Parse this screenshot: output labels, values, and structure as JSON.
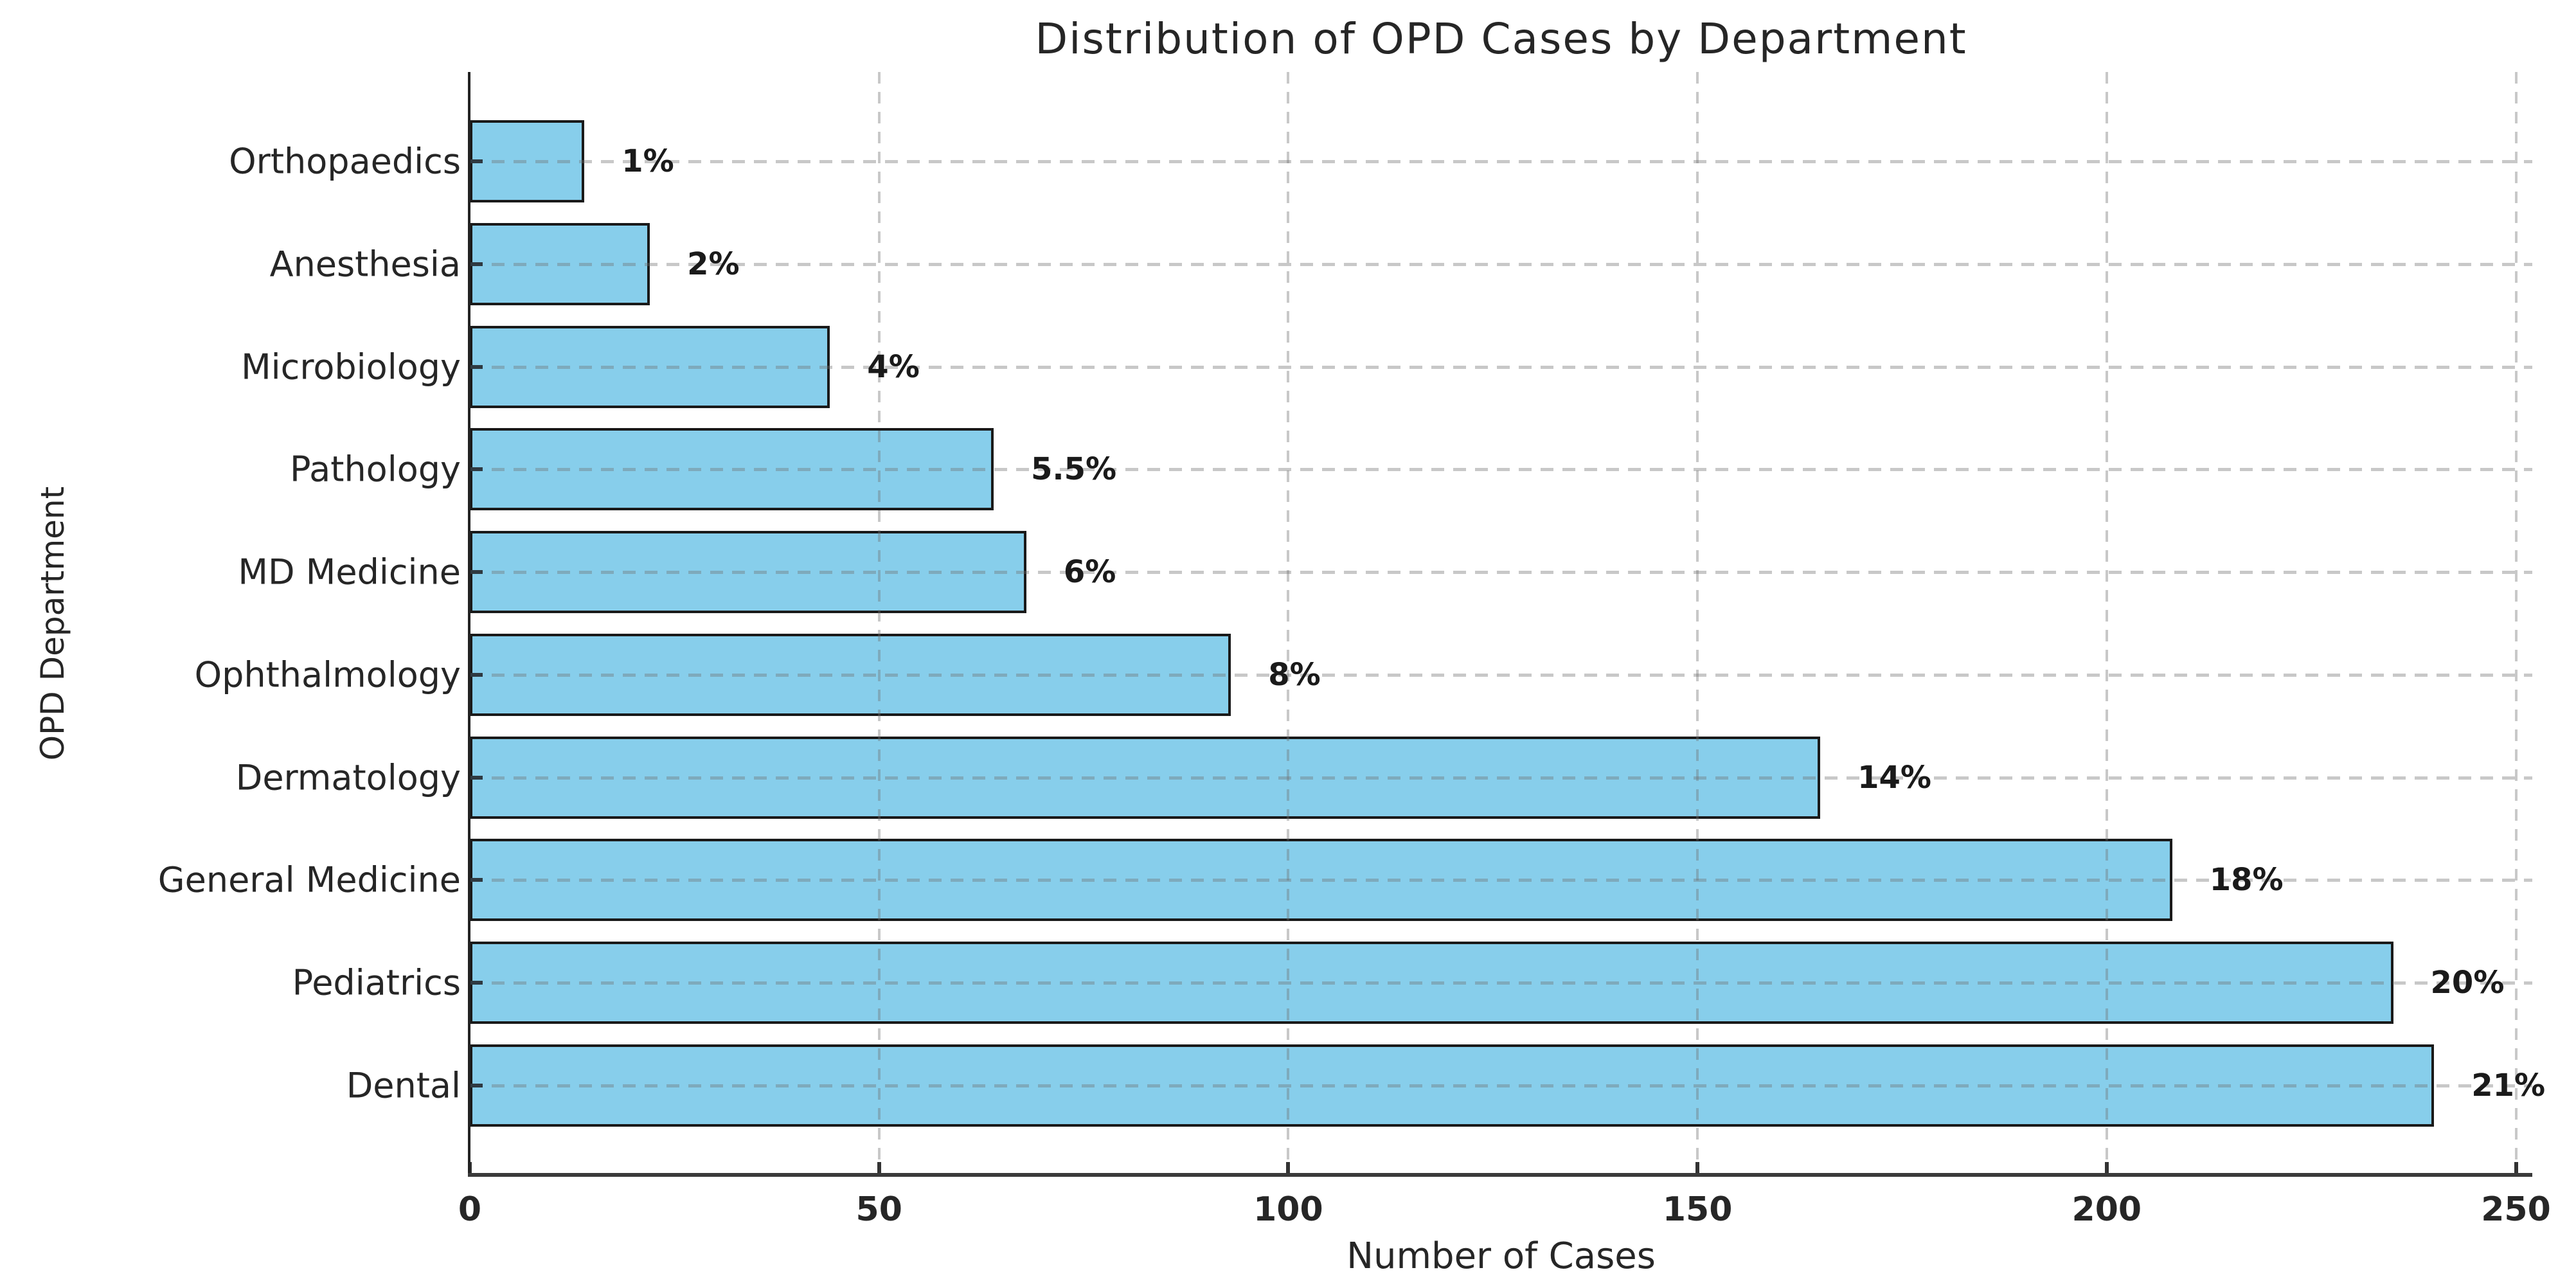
{
  "chart_data": {
    "type": "bar",
    "orientation": "horizontal",
    "title": "Distribution of OPD Cases by Department",
    "xlabel": "Number of Cases",
    "ylabel": "OPD Department",
    "categories": [
      "Orthopaedics",
      "Anesthesia",
      "Microbiology",
      "Pathology",
      "MD Medicine",
      "Ophthalmology",
      "Dermatology",
      "General Medicine",
      "Pediatrics",
      "Dental"
    ],
    "values": [
      14,
      22,
      44,
      64,
      68,
      93,
      165,
      208,
      235,
      240
    ],
    "percent_labels": [
      "1%",
      "2%",
      "4%",
      "5.5%",
      "6%",
      "8%",
      "14%",
      "18%",
      "20%",
      "21%"
    ],
    "xticks": [
      0,
      50,
      100,
      150,
      200,
      250
    ],
    "xlim": [
      0,
      252
    ],
    "grid": true,
    "legend_position": "none",
    "colors": {
      "bar_fill": "#87CEEB",
      "bar_edge": "#1a1a1a",
      "grid": "#bdbdbd",
      "text": "#262626",
      "background": "#ffffff"
    }
  }
}
